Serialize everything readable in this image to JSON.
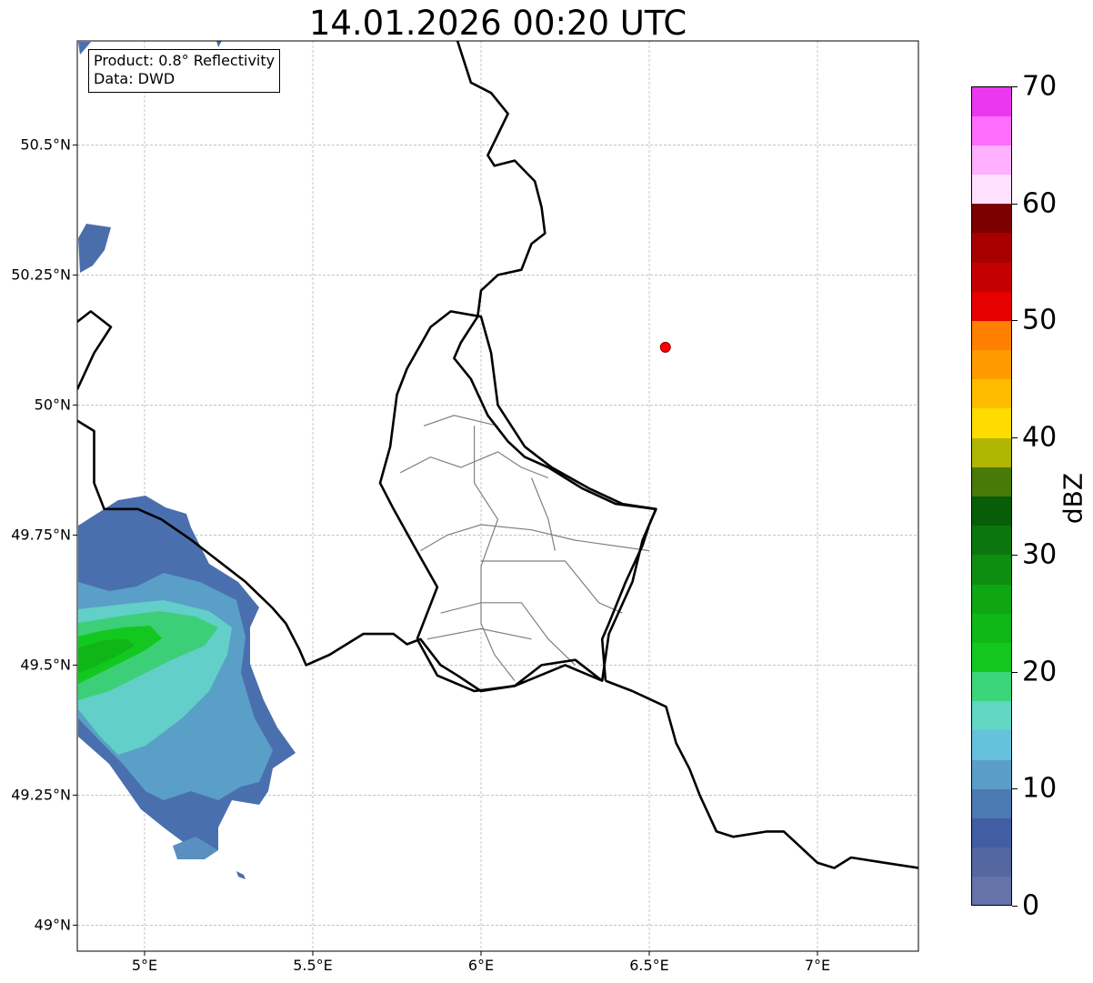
{
  "title": "14.01.2026 00:20 UTC",
  "info_box": {
    "product": "Product: 0.8° Reflectivity",
    "source": "Data: DWD"
  },
  "map": {
    "lon_range": [
      4.8,
      7.3
    ],
    "lat_range": [
      48.95,
      50.7
    ],
    "grid": true,
    "lat_ticks": [
      {
        "value": 50.5,
        "label": "50.5°N"
      },
      {
        "value": 50.25,
        "label": "50.25°N"
      },
      {
        "value": 50.0,
        "label": "50°N"
      },
      {
        "value": 49.75,
        "label": "49.75°N"
      },
      {
        "value": 49.5,
        "label": "49.5°N"
      },
      {
        "value": 49.25,
        "label": "49.25°N"
      },
      {
        "value": 49.0,
        "label": "49°N"
      }
    ],
    "lon_ticks": [
      {
        "value": 5.0,
        "label": "5°E"
      },
      {
        "value": 5.5,
        "label": "5.5°E"
      },
      {
        "value": 6.0,
        "label": "6°E"
      },
      {
        "value": 6.5,
        "label": "6.5°E"
      },
      {
        "value": 7.0,
        "label": "7°E"
      }
    ],
    "radar_site": {
      "lon": 6.548,
      "lat": 50.111,
      "color": "#ff0000"
    },
    "borders": [
      [
        [
          5.93,
          50.7
        ],
        [
          5.97,
          50.62
        ],
        [
          6.03,
          50.6
        ],
        [
          6.08,
          50.56
        ],
        [
          6.05,
          50.52
        ],
        [
          6.02,
          50.48
        ],
        [
          6.04,
          50.46
        ],
        [
          6.1,
          50.47
        ],
        [
          6.16,
          50.43
        ],
        [
          6.18,
          50.38
        ],
        [
          6.19,
          50.33
        ],
        [
          6.15,
          50.31
        ],
        [
          6.12,
          50.26
        ],
        [
          6.05,
          50.25
        ],
        [
          6.0,
          50.22
        ],
        [
          5.99,
          50.17
        ],
        [
          5.97,
          50.15
        ],
        [
          5.94,
          50.12
        ],
        [
          5.92,
          50.09
        ],
        [
          5.97,
          50.05
        ],
        [
          6.02,
          49.98
        ],
        [
          6.08,
          49.93
        ],
        [
          6.13,
          49.9
        ],
        [
          6.2,
          49.88
        ],
        [
          6.3,
          49.84
        ],
        [
          6.4,
          49.81
        ],
        [
          6.52,
          49.8
        ],
        [
          6.5,
          49.77
        ],
        [
          6.48,
          49.73
        ],
        [
          6.43,
          49.66
        ],
        [
          6.38,
          49.58
        ],
        [
          6.36,
          49.55
        ],
        [
          6.37,
          49.47
        ]
      ],
      [
        [
          6.36,
          49.47
        ],
        [
          6.28,
          49.51
        ],
        [
          6.18,
          49.5
        ],
        [
          6.1,
          49.46
        ],
        [
          6.0,
          49.45
        ],
        [
          5.93,
          49.48
        ],
        [
          5.88,
          49.5
        ],
        [
          5.82,
          49.55
        ],
        [
          5.78,
          49.54
        ],
        [
          5.74,
          49.56
        ],
        [
          5.65,
          49.56
        ],
        [
          5.55,
          49.52
        ],
        [
          5.48,
          49.5
        ],
        [
          5.46,
          49.53
        ],
        [
          5.42,
          49.58
        ],
        [
          5.38,
          49.61
        ],
        [
          5.3,
          49.66
        ],
        [
          5.22,
          49.7
        ],
        [
          5.14,
          49.74
        ],
        [
          5.05,
          49.78
        ],
        [
          4.98,
          49.8
        ],
        [
          4.88,
          49.8
        ],
        [
          4.85,
          49.85
        ],
        [
          4.85,
          49.95
        ],
        [
          4.8,
          49.97
        ]
      ],
      [
        [
          4.8,
          50.03
        ],
        [
          4.85,
          50.1
        ],
        [
          4.9,
          50.15
        ],
        [
          4.84,
          50.18
        ],
        [
          4.8,
          50.16
        ]
      ],
      [
        [
          6.37,
          49.47
        ],
        [
          6.45,
          49.45
        ],
        [
          6.55,
          49.42
        ],
        [
          6.58,
          49.35
        ],
        [
          6.62,
          49.3
        ],
        [
          6.65,
          49.25
        ],
        [
          6.7,
          49.18
        ],
        [
          6.75,
          49.17
        ],
        [
          6.85,
          49.18
        ],
        [
          6.9,
          49.18
        ],
        [
          6.95,
          49.15
        ],
        [
          7.0,
          49.12
        ],
        [
          7.05,
          49.11
        ],
        [
          7.1,
          49.13
        ],
        [
          7.2,
          49.12
        ],
        [
          7.3,
          49.11
        ]
      ],
      [
        [
          5.81,
          49.55
        ],
        [
          5.87,
          49.48
        ],
        [
          5.98,
          49.45
        ],
        [
          6.1,
          49.46
        ],
        [
          6.25,
          49.5
        ],
        [
          6.36,
          49.47
        ],
        [
          6.38,
          49.56
        ],
        [
          6.45,
          49.66
        ],
        [
          6.48,
          49.74
        ],
        [
          6.52,
          49.8
        ],
        [
          6.42,
          49.81
        ],
        [
          6.32,
          49.84
        ],
        [
          6.21,
          49.88
        ],
        [
          6.13,
          49.92
        ],
        [
          6.05,
          50.0
        ],
        [
          6.03,
          50.1
        ],
        [
          6.0,
          50.17
        ],
        [
          5.91,
          50.18
        ],
        [
          5.85,
          50.15
        ],
        [
          5.78,
          50.07
        ],
        [
          5.75,
          50.02
        ],
        [
          5.73,
          49.92
        ],
        [
          5.7,
          49.85
        ],
        [
          5.74,
          49.8
        ],
        [
          5.8,
          49.73
        ],
        [
          5.87,
          49.65
        ],
        [
          5.81,
          49.55
        ]
      ]
    ],
    "districts": [
      [
        [
          5.76,
          49.87
        ],
        [
          5.85,
          49.9
        ],
        [
          5.94,
          49.88
        ],
        [
          6.05,
          49.91
        ],
        [
          6.12,
          49.88
        ],
        [
          6.2,
          49.86
        ]
      ],
      [
        [
          5.83,
          49.96
        ],
        [
          5.92,
          49.98
        ],
        [
          6.05,
          49.96
        ]
      ],
      [
        [
          5.98,
          49.96
        ],
        [
          5.98,
          49.85
        ],
        [
          6.05,
          49.78
        ],
        [
          6.0,
          49.69
        ],
        [
          6.0,
          49.58
        ],
        [
          6.04,
          49.52
        ],
        [
          6.1,
          49.47
        ]
      ],
      [
        [
          5.82,
          49.72
        ],
        [
          5.9,
          49.75
        ],
        [
          6.0,
          49.77
        ],
        [
          6.15,
          49.76
        ],
        [
          6.28,
          49.74
        ],
        [
          6.5,
          49.72
        ]
      ],
      [
        [
          6.0,
          49.7
        ],
        [
          6.15,
          49.7
        ],
        [
          6.25,
          49.7
        ],
        [
          6.35,
          49.62
        ],
        [
          6.42,
          49.6
        ]
      ],
      [
        [
          6.15,
          49.86
        ],
        [
          6.2,
          49.78
        ],
        [
          6.22,
          49.72
        ]
      ],
      [
        [
          5.88,
          49.6
        ],
        [
          6.0,
          49.62
        ],
        [
          6.12,
          49.62
        ],
        [
          6.2,
          49.55
        ],
        [
          6.28,
          49.5
        ]
      ],
      [
        [
          5.84,
          49.55
        ],
        [
          6.0,
          49.57
        ],
        [
          6.15,
          49.55
        ]
      ]
    ]
  },
  "colorbar": {
    "label": "dBZ",
    "min": 0,
    "max": 70,
    "step": 2.5,
    "ticks": [
      "0",
      "10",
      "20",
      "30",
      "40",
      "50",
      "60",
      "70"
    ],
    "colors": [
      "#6473a8",
      "#5467a0",
      "#405ea1",
      "#4a7ab1",
      "#5a9ec8",
      "#66c1dc",
      "#60d6c3",
      "#3cd67a",
      "#12c81e",
      "#10b817",
      "#0fa613",
      "#0d8e10",
      "#0b760e",
      "#075d08",
      "#477a08",
      "#b0b500",
      "#ffdb00",
      "#ffbb00",
      "#ff9b00",
      "#ff7f00",
      "#e60000",
      "#c40000",
      "#a80000",
      "#7c0000",
      "#ffe0ff",
      "#ffb0ff",
      "#ff6efc",
      "#ea38f0"
    ]
  }
}
